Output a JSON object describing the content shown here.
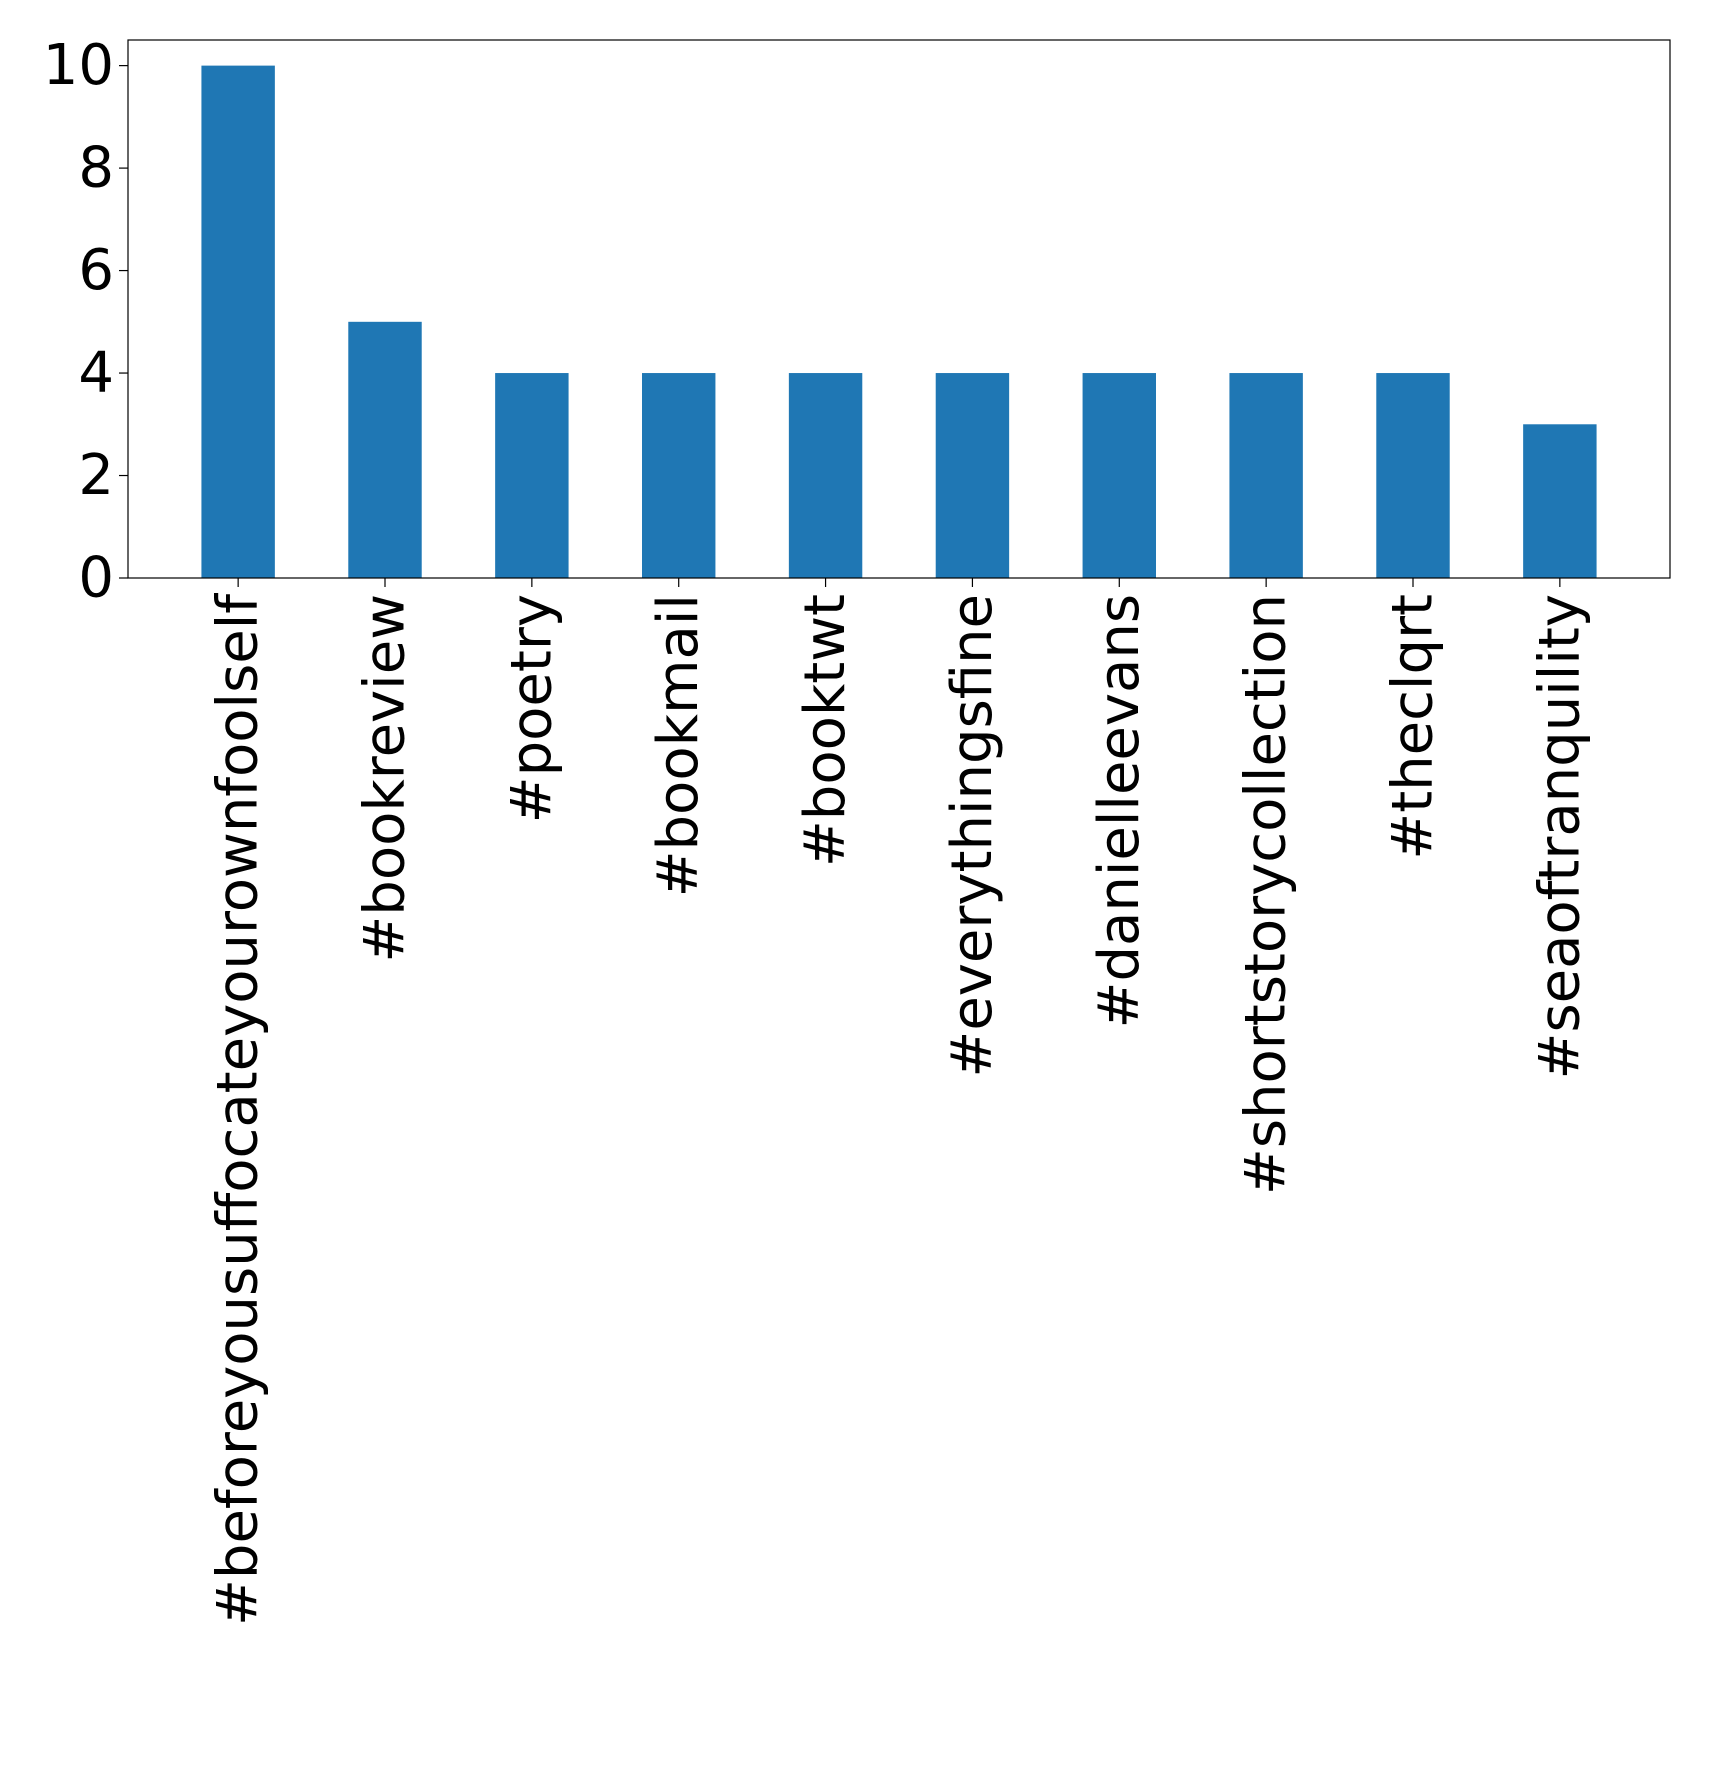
{
  "chart_data": {
    "type": "bar",
    "title": "",
    "xlabel": "",
    "ylabel": "",
    "categories": [
      "#beforeyousuffocateyourownfoolself",
      "#bookreview",
      "#poetry",
      "#bookmail",
      "#booktwt",
      "#everythingsfine",
      "#danielleevans",
      "#shortstorycollection",
      "#theclqrt",
      "#seaoftranquility"
    ],
    "values": [
      10,
      5,
      4,
      4,
      4,
      4,
      4,
      4,
      4,
      3
    ],
    "ylim": [
      0,
      10.5
    ],
    "yticks": [
      "0",
      "2",
      "4",
      "6",
      "8",
      "10"
    ],
    "bar_color": "#1f77b4",
    "grid": false,
    "legend": "none"
  }
}
